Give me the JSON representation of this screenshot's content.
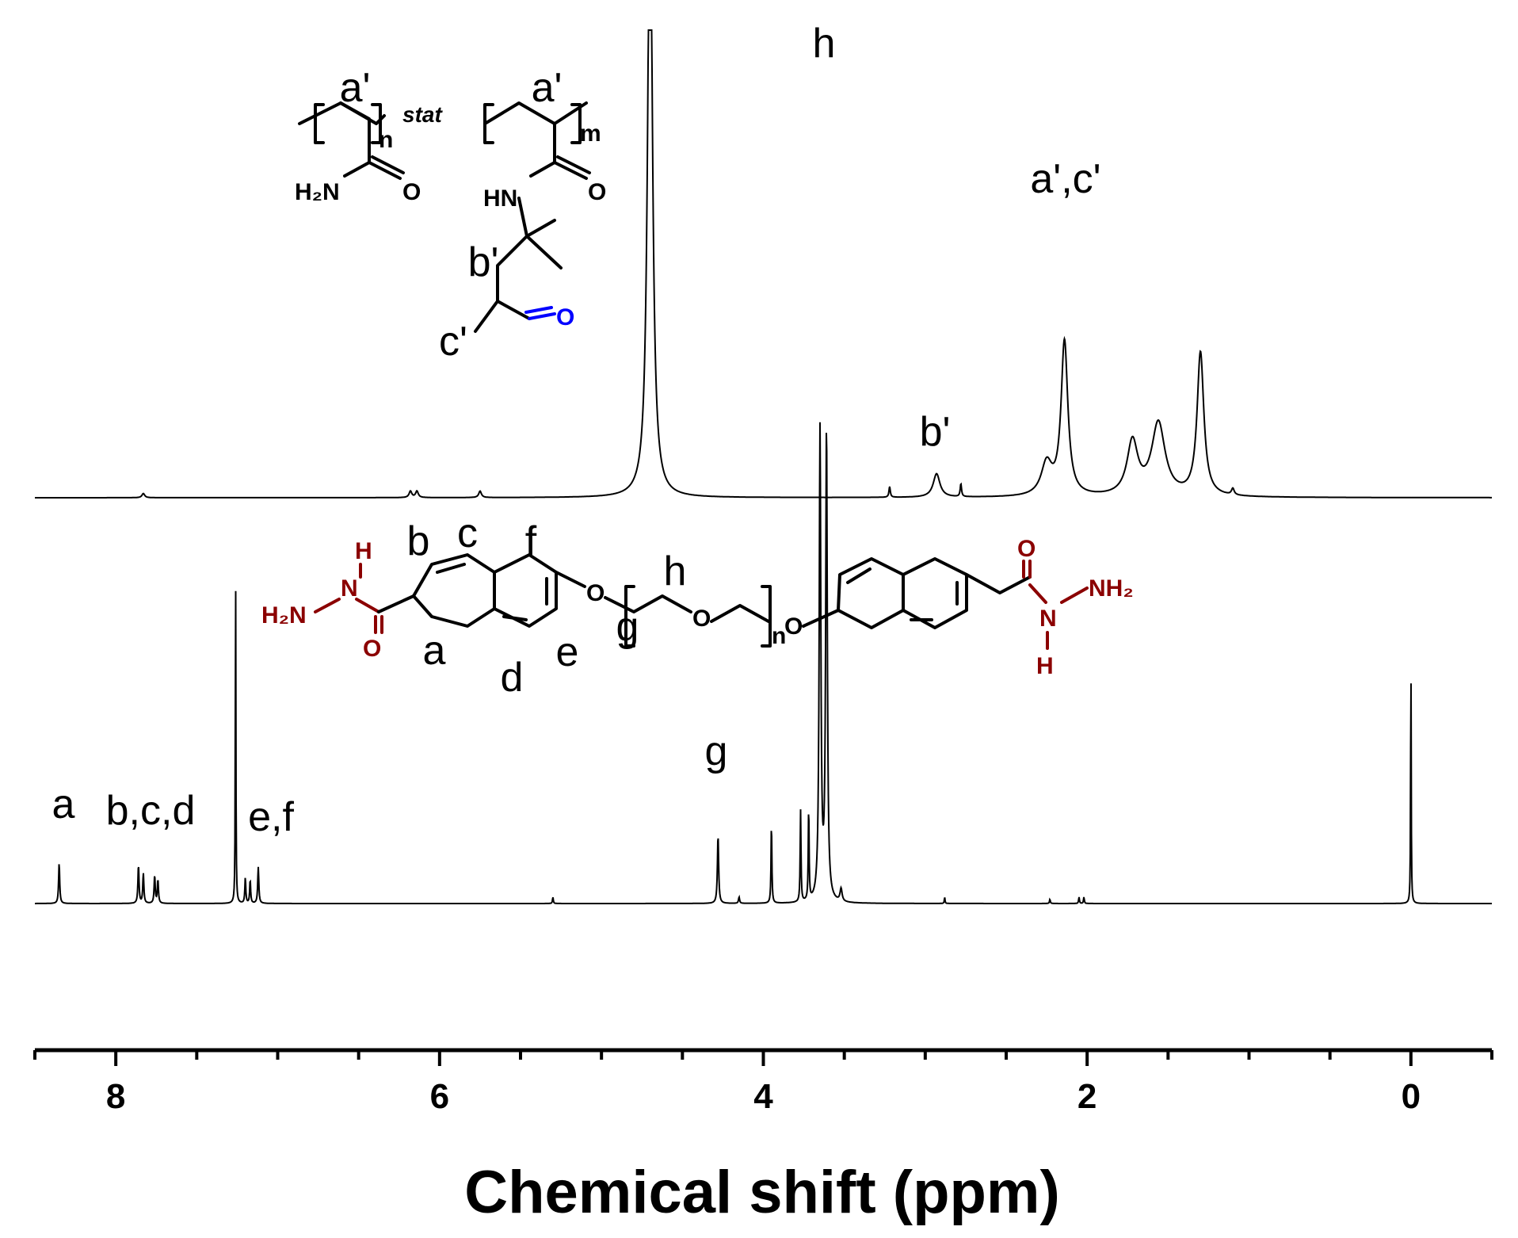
{
  "chart_data": {
    "type": "line",
    "title": "",
    "xlabel": "Chemical shift (ppm)",
    "ylabel": "",
    "xlim": [
      8.5,
      -0.5
    ],
    "x_reversed": true,
    "x_ticks": [
      8,
      6,
      4,
      2,
      0
    ],
    "x_tick_labels": [
      "8",
      "6",
      "4",
      "2",
      "0"
    ],
    "grid": false,
    "legend": "none",
    "series": [
      {
        "peaks": [
          {
            "x": 7.83,
            "height": 0.02,
            "width": 0.02
          },
          {
            "x": 6.18,
            "height": 0.03,
            "width": 0.02
          },
          {
            "x": 6.14,
            "height": 0.03,
            "width": 0.02
          },
          {
            "x": 5.75,
            "height": 0.03,
            "width": 0.02
          },
          {
            "x": 4.7,
            "height": 3.0,
            "width": 0.035
          },
          {
            "x": 3.22,
            "height": 0.05,
            "width": 0.01
          },
          {
            "x": 2.93,
            "height": 0.11,
            "width": 0.05
          },
          {
            "x": 2.78,
            "height": 0.06,
            "width": 0.01
          },
          {
            "x": 2.25,
            "height": 0.15,
            "width": 0.08
          },
          {
            "x": 2.14,
            "height": 0.72,
            "width": 0.05
          },
          {
            "x": 1.72,
            "height": 0.25,
            "width": 0.08
          },
          {
            "x": 1.56,
            "height": 0.34,
            "width": 0.1
          },
          {
            "x": 1.3,
            "height": 0.67,
            "width": 0.05
          },
          {
            "x": 1.1,
            "height": 0.03,
            "width": 0.02
          }
        ]
      },
      {
        "peaks": [
          {
            "x": 8.35,
            "height": 0.19,
            "width": 0.008
          },
          {
            "x": 7.86,
            "height": 0.18,
            "width": 0.008
          },
          {
            "x": 7.83,
            "height": 0.14,
            "width": 0.008
          },
          {
            "x": 7.76,
            "height": 0.13,
            "width": 0.008
          },
          {
            "x": 7.74,
            "height": 0.11,
            "width": 0.008
          },
          {
            "x": 7.26,
            "height": 1.6,
            "width": 0.004
          },
          {
            "x": 7.2,
            "height": 0.12,
            "width": 0.007
          },
          {
            "x": 7.17,
            "height": 0.11,
            "width": 0.007
          },
          {
            "x": 7.12,
            "height": 0.17,
            "width": 0.008
          },
          {
            "x": 5.3,
            "height": 0.03,
            "width": 0.006
          },
          {
            "x": 4.28,
            "height": 0.32,
            "width": 0.009
          },
          {
            "x": 4.15,
            "height": 0.03,
            "width": 0.008
          },
          {
            "x": 3.95,
            "height": 0.38,
            "width": 0.006
          },
          {
            "x": 3.77,
            "height": 0.43,
            "width": 0.006
          },
          {
            "x": 3.72,
            "height": 0.44,
            "width": 0.006
          },
          {
            "x": 3.65,
            "height": 2.2,
            "width": 0.012
          },
          {
            "x": 3.61,
            "height": 2.2,
            "width": 0.012
          },
          {
            "x": 3.52,
            "height": 0.06,
            "width": 0.015
          },
          {
            "x": 2.88,
            "height": 0.03,
            "width": 0.005
          },
          {
            "x": 2.23,
            "height": 0.02,
            "width": 0.006
          },
          {
            "x": 2.05,
            "height": 0.03,
            "width": 0.006
          },
          {
            "x": 2.02,
            "height": 0.03,
            "width": 0.006
          },
          {
            "x": 0.0,
            "height": 1.2,
            "width": 0.004
          }
        ]
      }
    ],
    "annotations": [
      {
        "text": "h",
        "x": 3.63
      },
      {
        "text": "a',c'",
        "x": 2.15
      },
      {
        "text": "b'",
        "x": 2.93
      },
      {
        "text": "g",
        "x": 4.28
      },
      {
        "text": "a",
        "x": 8.35
      },
      {
        "text": "b,c,d",
        "x": 7.82
      },
      {
        "text": "e,f",
        "x": 7.16
      }
    ]
  },
  "structures": {
    "polymer": {
      "labels": [
        "a'",
        "a'",
        "b'",
        "c'"
      ],
      "subscript_n": "n",
      "subscript_m": "m",
      "stat": "stat",
      "amide_nh2": "H₂N",
      "oxygen": "O",
      "nh": "HN"
    },
    "crosslinker": {
      "proton_labels": [
        "a",
        "b",
        "c",
        "d",
        "e",
        "f",
        "g",
        "h"
      ],
      "subscript_n": "n",
      "h_atom": "H",
      "n_atom": "N",
      "h2n": "H₂N",
      "nh2": "NH₂",
      "oxygen": "O"
    }
  },
  "colors": {
    "spectrum": "#000000",
    "hydrazide": "#8b0000",
    "ketone": "#0000ff"
  }
}
